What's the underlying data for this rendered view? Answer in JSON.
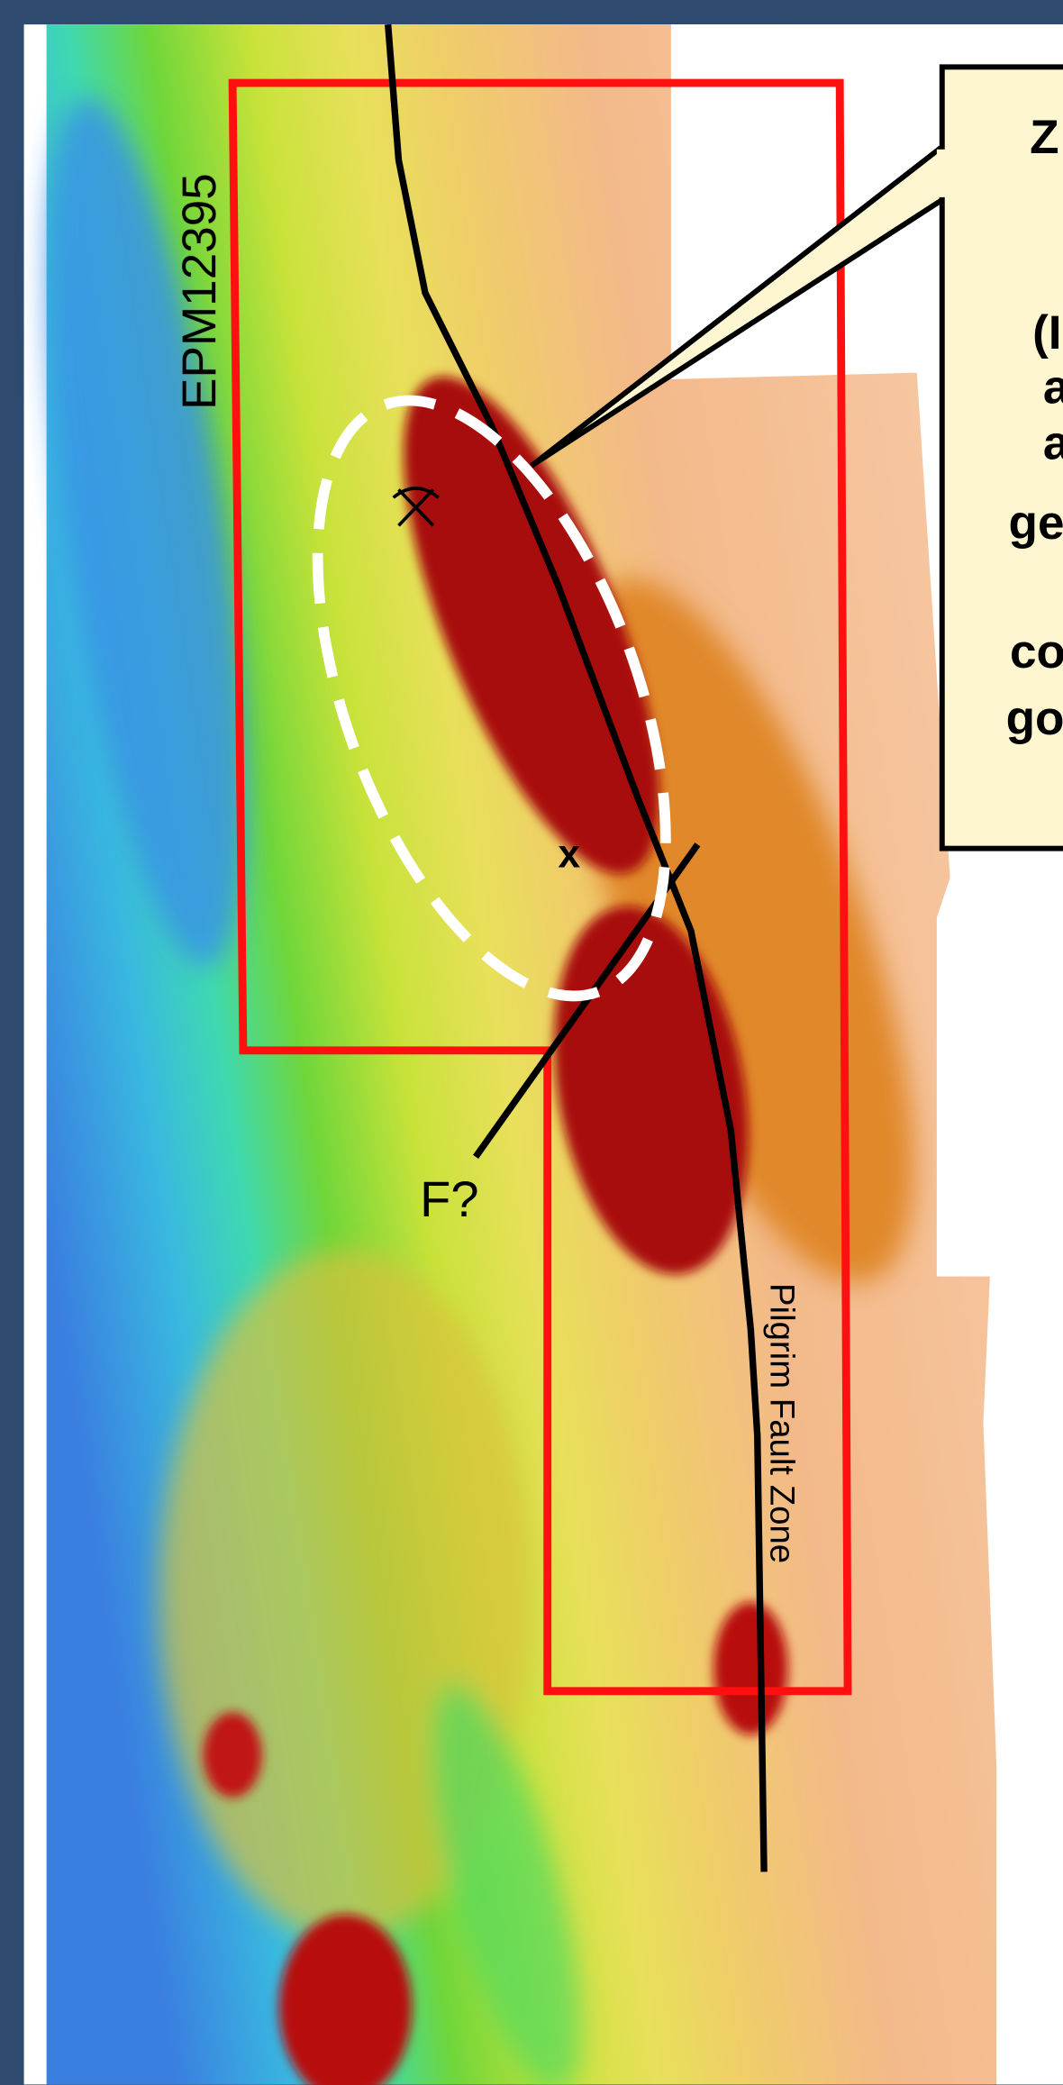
{
  "labels": {
    "tenement": "EPM12395",
    "fault": "Pilgrim Fault Zone",
    "fault_query": "F?",
    "marker": "x"
  },
  "callout": {
    "lines": [
      "Z",
      "(I",
      "a",
      "a",
      "ge",
      "co",
      "go"
    ]
  }
}
